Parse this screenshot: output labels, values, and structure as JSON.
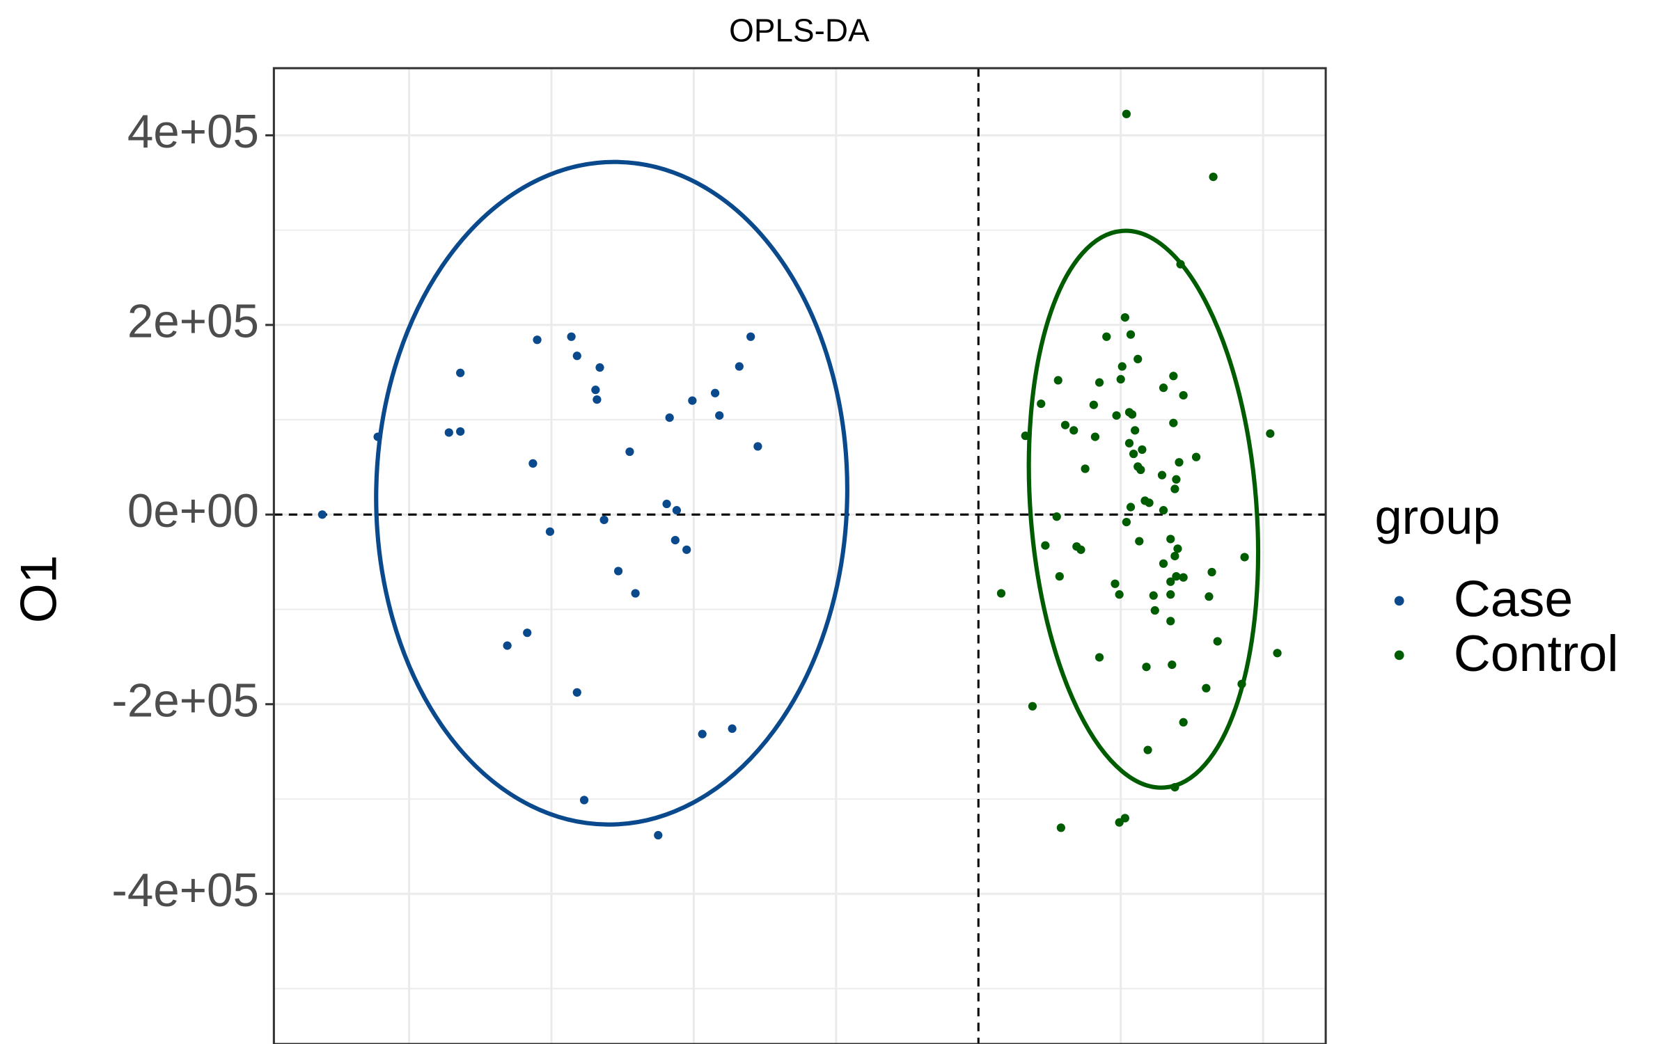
{
  "chart_data": {
    "type": "scatter",
    "title": "OPLS-DA",
    "y_label": "O1",
    "legend_title": "group",
    "legend_position": "right",
    "grid": true,
    "xlim": [
      -4.95,
      2.44
    ],
    "xgrid": [
      -4,
      -3,
      -2,
      -1,
      1,
      2
    ],
    "ylim": [
      -558400,
      470800
    ],
    "yticks": [
      {
        "value": 400000,
        "label": "4e+05"
      },
      {
        "value": 200000,
        "label": "2e+05"
      },
      {
        "value": 0,
        "label": "0e+00"
      },
      {
        "value": -200000,
        "label": "-2e+05"
      },
      {
        "value": -400000,
        "label": "-4e+05"
      }
    ],
    "yminor": [
      300000,
      100000,
      -100000,
      -300000,
      -500000
    ],
    "reference_lines": {
      "x": 0,
      "y": 0
    },
    "series": [
      {
        "name": "Case",
        "color": "#0a4a8c",
        "x": [
          -4.61,
          -4.22,
          -3.72,
          -3.64,
          -3.64,
          -3.13,
          -3.1,
          -3.01,
          -2.86,
          -2.82,
          -2.69,
          -2.68,
          -2.66,
          -2.63,
          -2.53,
          -2.45,
          -2.41,
          -3.31,
          -3.17,
          -2.82,
          -2.77,
          -2.25,
          -2.17,
          -2.19,
          -2.12,
          -2.13,
          -2.05,
          -2.01,
          -1.94,
          -1.85,
          -1.82,
          -1.73,
          -1.68,
          -1.6,
          -1.55
        ],
        "y": [
          0,
          82000,
          86500,
          87600,
          149400,
          53900,
          184300,
          -18000,
          187600,
          167400,
          131500,
          121300,
          155100,
          -5600,
          -59600,
          66300,
          -83100,
          -138200,
          -124700,
          -187600,
          -301100,
          -338200,
          102200,
          11200,
          4500,
          -27000,
          -37100,
          120200,
          -231500,
          128100,
          104500,
          -225800,
          156200,
          187600,
          71900
        ]
      },
      {
        "name": "Control",
        "color": "#005c00",
        "x": [
          1.04,
          1.65,
          1.42,
          1.03,
          0.9,
          1.07,
          1.12,
          1.01,
          1.0,
          0.56,
          0.85,
          1.37,
          1.44,
          1.3,
          0.44,
          0.81,
          1.06,
          0.97,
          1.08,
          0.61,
          0.67,
          1.1,
          1.37,
          0.33,
          0.82,
          2.05,
          1.06,
          1.15,
          1.09,
          1.12,
          1.14,
          0.75,
          1.41,
          1.53,
          1.29,
          1.39,
          1.38,
          1.17,
          1.2,
          1.07,
          1.3,
          1.04,
          0.55,
          1.13,
          0.47,
          0.69,
          0.72,
          1.35,
          1.4,
          1.38,
          1.87,
          1.3,
          1.39,
          1.44,
          1.35,
          1.64,
          0.57,
          0.96,
          1.23,
          0.99,
          1.35,
          1.62,
          1.24,
          1.35,
          0.16,
          1.68,
          2.1,
          0.85,
          1.18,
          1.36,
          1.6,
          1.85,
          0.38,
          1.44,
          1.19,
          1.38,
          1.03,
          0.99,
          0.58
        ],
        "y": [
          422500,
          356200,
          264000,
          207900,
          187600,
          189900,
          164000,
          156200,
          142700,
          141600,
          139300,
          146100,
          125800,
          133700,
          116900,
          115700,
          107900,
          104500,
          105600,
          94400,
          88800,
          88800,
          96600,
          83100,
          82000,
          85400,
          75300,
          68500,
          64000,
          50600,
          47200,
          48300,
          55100,
          60700,
          41600,
          37100,
          27000,
          14600,
          12400,
          7900,
          4500,
          -7900,
          -2200,
          -28100,
          -32600,
          -33700,
          -37100,
          -25800,
          -36000,
          -43800,
          -44900,
          -51700,
          -65200,
          -66300,
          -70800,
          -60700,
          -65200,
          -73000,
          -85400,
          -84300,
          -84300,
          -86500,
          -101100,
          -112400,
          -83100,
          -133700,
          -146100,
          -150600,
          -160700,
          -158400,
          -183100,
          -178700,
          -202200,
          -219100,
          -248300,
          -287600,
          -320200,
          -324700,
          -330300
        ]
      }
    ]
  }
}
